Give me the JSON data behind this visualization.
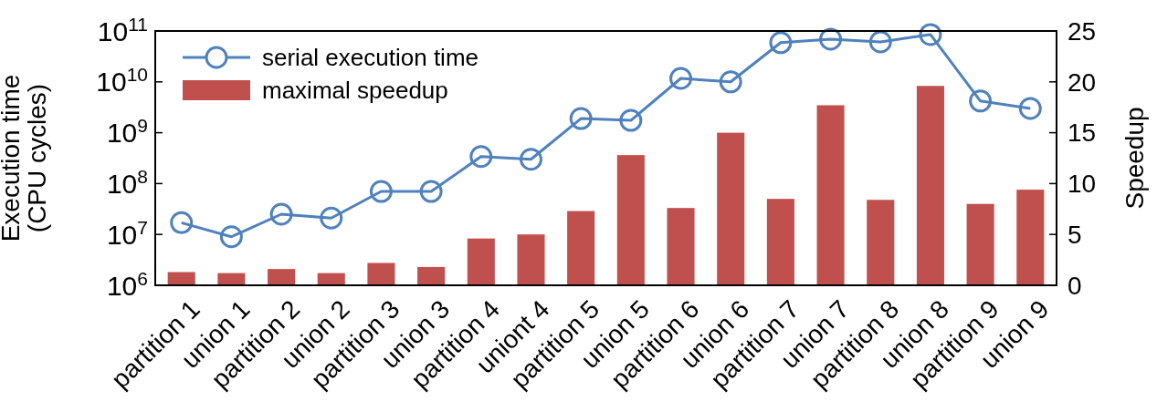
{
  "chart_data": {
    "type": "bar",
    "ylabel": "Execution time\n(CPU cycles)",
    "y2label": "Speedup",
    "categories": [
      "partition 1",
      "union 1",
      "partition 2",
      "union 2",
      "partition 3",
      "union 3",
      "partition 4",
      "uniont 4",
      "partition 5",
      "union 5",
      "partition 6",
      "union 6",
      "partition 7",
      "union 7",
      "partition 8",
      "union 8",
      "partition 9",
      "union 9"
    ],
    "series": [
      {
        "name": "serial execution time",
        "type": "line",
        "color": "#4f81bd",
        "marker": "circle",
        "values": [
          17000000.0,
          9000000.0,
          25000000.0,
          21000000.0,
          70000000.0,
          70000000.0,
          340000000.0,
          300000000.0,
          1900000000.0,
          1750000000.0,
          11700000000.0,
          10000000000.0,
          59000000000.0,
          69000000000.0,
          61000000000.0,
          85000000000.0,
          4200000000.0,
          3000000000.0
        ]
      },
      {
        "name": "maximal speedup",
        "axis": "y2",
        "color": "#c0504d",
        "values": [
          1.3,
          1.2,
          1.6,
          1.2,
          2.2,
          1.8,
          4.6,
          5.0,
          7.3,
          12.8,
          7.6,
          15.0,
          8.5,
          17.7,
          8.4,
          19.6,
          8.0,
          9.4
        ]
      }
    ],
    "log": "y",
    "ylim": [
      1000000.0,
      100000000000.0
    ],
    "yticks": [
      {
        "value": 1000000.0,
        "label": "10$^{6}$"
      },
      {
        "value": 10000000.0,
        "label": "10$^{7}$"
      },
      {
        "value": 100000000.0,
        "label": "10$^{8}$"
      },
      {
        "value": 1000000000.0,
        "label": "10$^{9}$"
      },
      {
        "value": 10000000000.0,
        "label": "10$^{10}$"
      },
      {
        "value": 100000000000.0,
        "label": "10$^{11}$"
      }
    ],
    "y2lim": [
      0,
      25
    ],
    "y2ticks": [
      0,
      5,
      10,
      15,
      20,
      25
    ],
    "legend": "top left",
    "grid": false
  }
}
